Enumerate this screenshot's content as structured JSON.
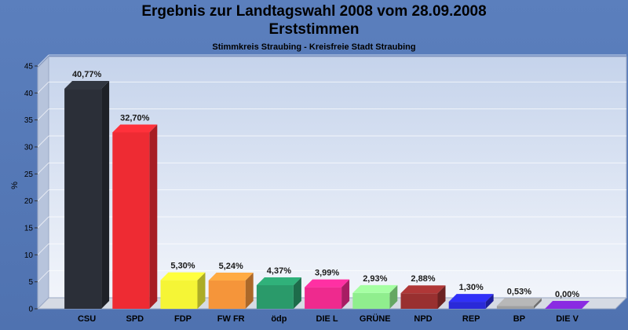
{
  "header": {
    "title_line1": "Ergebnis zur Landtagswahl 2008 vom 28.09.2008",
    "title_line2": "Erststimmen",
    "subtitle": "Stimmkreis Straubing - Kreisfreie Stadt Straubing"
  },
  "chart_data": {
    "type": "bar",
    "title": "Ergebnis zur Landtagswahl 2008 vom 28.09.2008 Erststimmen",
    "subtitle": "Stimmkreis Straubing - Kreisfreie Stadt Straubing",
    "xlabel": "",
    "ylabel": "%",
    "ylim": [
      0,
      45
    ],
    "yticks": [
      0,
      5,
      10,
      15,
      20,
      25,
      30,
      35,
      40,
      45
    ],
    "grid": true,
    "categories": [
      "CSU",
      "SPD",
      "FDP",
      "FW FR",
      "ödp",
      "DIE L",
      "GRÜNE",
      "NPD",
      "REP",
      "BP",
      "DIE V"
    ],
    "values": [
      40.77,
      32.7,
      5.3,
      5.24,
      4.37,
      3.99,
      2.93,
      2.88,
      1.3,
      0.53,
      0.0
    ],
    "labels": [
      "40,77%",
      "32,70%",
      "5,30%",
      "5,24%",
      "4,37%",
      "3,99%",
      "2,93%",
      "2,88%",
      "1,30%",
      "0,53%",
      "0,00%"
    ],
    "colors": [
      "#2b2f38",
      "#ee2b33",
      "#f5f536",
      "#f5953a",
      "#2a9a6a",
      "#ee2a8e",
      "#90ee8e",
      "#993030",
      "#2a2ad8",
      "#a0a0a0",
      "#8a2be2"
    ]
  }
}
